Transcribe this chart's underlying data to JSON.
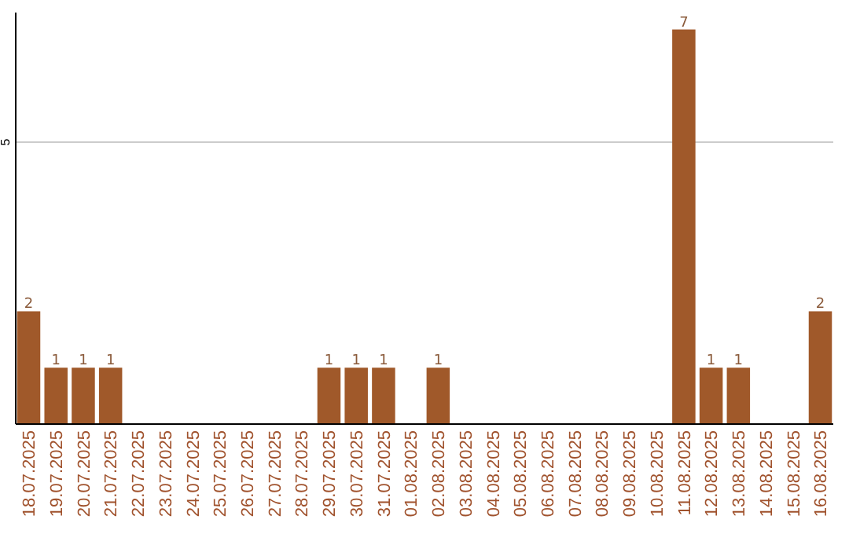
{
  "chart_data": {
    "type": "bar",
    "categories": [
      "18.07.2025",
      "19.07.2025",
      "20.07.2025",
      "21.07.2025",
      "22.07.2025",
      "23.07.2025",
      "24.07.2025",
      "25.07.2025",
      "26.07.2025",
      "27.07.2025",
      "28.07.2025",
      "29.07.2025",
      "30.07.2025",
      "31.07.2025",
      "01.08.2025",
      "02.08.2025",
      "03.08.2025",
      "04.08.2025",
      "05.08.2025",
      "06.08.2025",
      "07.08.2025",
      "08.08.2025",
      "09.08.2025",
      "10.08.2025",
      "11.08.2025",
      "12.08.2025",
      "13.08.2025",
      "14.08.2025",
      "15.08.2025",
      "16.08.2025"
    ],
    "values": [
      2,
      1,
      1,
      1,
      0,
      0,
      0,
      0,
      0,
      0,
      0,
      1,
      1,
      1,
      0,
      1,
      0,
      0,
      0,
      0,
      0,
      0,
      0,
      0,
      7,
      1,
      1,
      0,
      0,
      2
    ],
    "value_labels": [
      "2",
      "1",
      "1",
      "1",
      null,
      null,
      null,
      null,
      null,
      null,
      null,
      "1",
      "1",
      "1",
      null,
      "1",
      null,
      null,
      null,
      null,
      null,
      null,
      null,
      null,
      "7",
      "1",
      "1",
      null,
      null,
      "2"
    ],
    "color": "#a0592a",
    "ylim": [
      0,
      7.3
    ],
    "yticks": [
      5
    ],
    "grid": "y"
  }
}
